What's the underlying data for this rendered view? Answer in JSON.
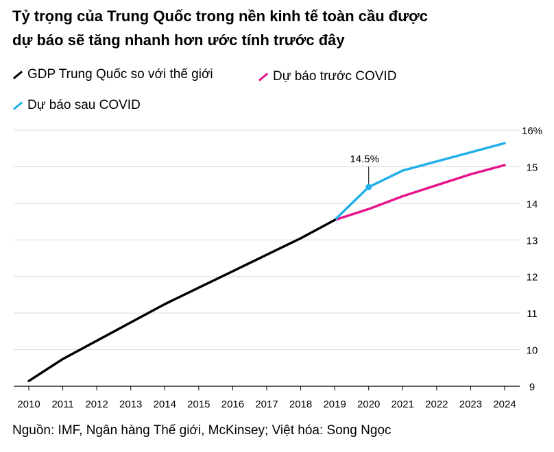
{
  "title_line1": "Tỷ trọng của Trung Quốc trong nền kinh tế toàn cầu được",
  "title_line2": "dự báo sẽ tăng nhanh hơn ước tính trước đây",
  "source": "Nguồn: IMF, Ngân hàng Thế giới, McKinsey; Việt hóa: Song Ngọc",
  "colors": {
    "gdp": "#000000",
    "pre_covid": "#e5148c",
    "post_covid": "#21b0ea",
    "grid": "#d9d9d9"
  },
  "chart_data": {
    "type": "line",
    "x": [
      2010,
      2011,
      2012,
      2013,
      2014,
      2015,
      2016,
      2017,
      2018,
      2019,
      2020,
      2021,
      2022,
      2023,
      2024
    ],
    "ylim": [
      9,
      16
    ],
    "y_ticks": [
      9,
      10,
      11,
      12,
      13,
      14,
      15,
      16
    ],
    "y_tick_labels": [
      "9",
      "10",
      "11",
      "12",
      "13",
      "14",
      "15",
      "16%"
    ],
    "series": [
      {
        "name": "GDP Trung Quốc so với thế giới",
        "x": [
          2010,
          2011,
          2012,
          2013,
          2014,
          2015,
          2016,
          2017,
          2018,
          2019
        ],
        "y": [
          9.2,
          9.8,
          10.3,
          10.8,
          11.3,
          11.75,
          12.2,
          12.65,
          13.1,
          13.6
        ]
      },
      {
        "name": "Dự báo trước COVID",
        "x": [
          2019,
          2020,
          2021,
          2022,
          2023,
          2024
        ],
        "y": [
          13.6,
          13.9,
          14.25,
          14.55,
          14.85,
          15.1
        ]
      },
      {
        "name": "Dự báo sau COVID",
        "x": [
          2019,
          2020,
          2021,
          2022,
          2023,
          2024
        ],
        "y": [
          13.6,
          14.5,
          14.95,
          15.2,
          15.45,
          15.7
        ]
      }
    ],
    "annotation": {
      "x": 2020,
      "y": 14.5,
      "label": "14.5%"
    },
    "grid": true
  }
}
